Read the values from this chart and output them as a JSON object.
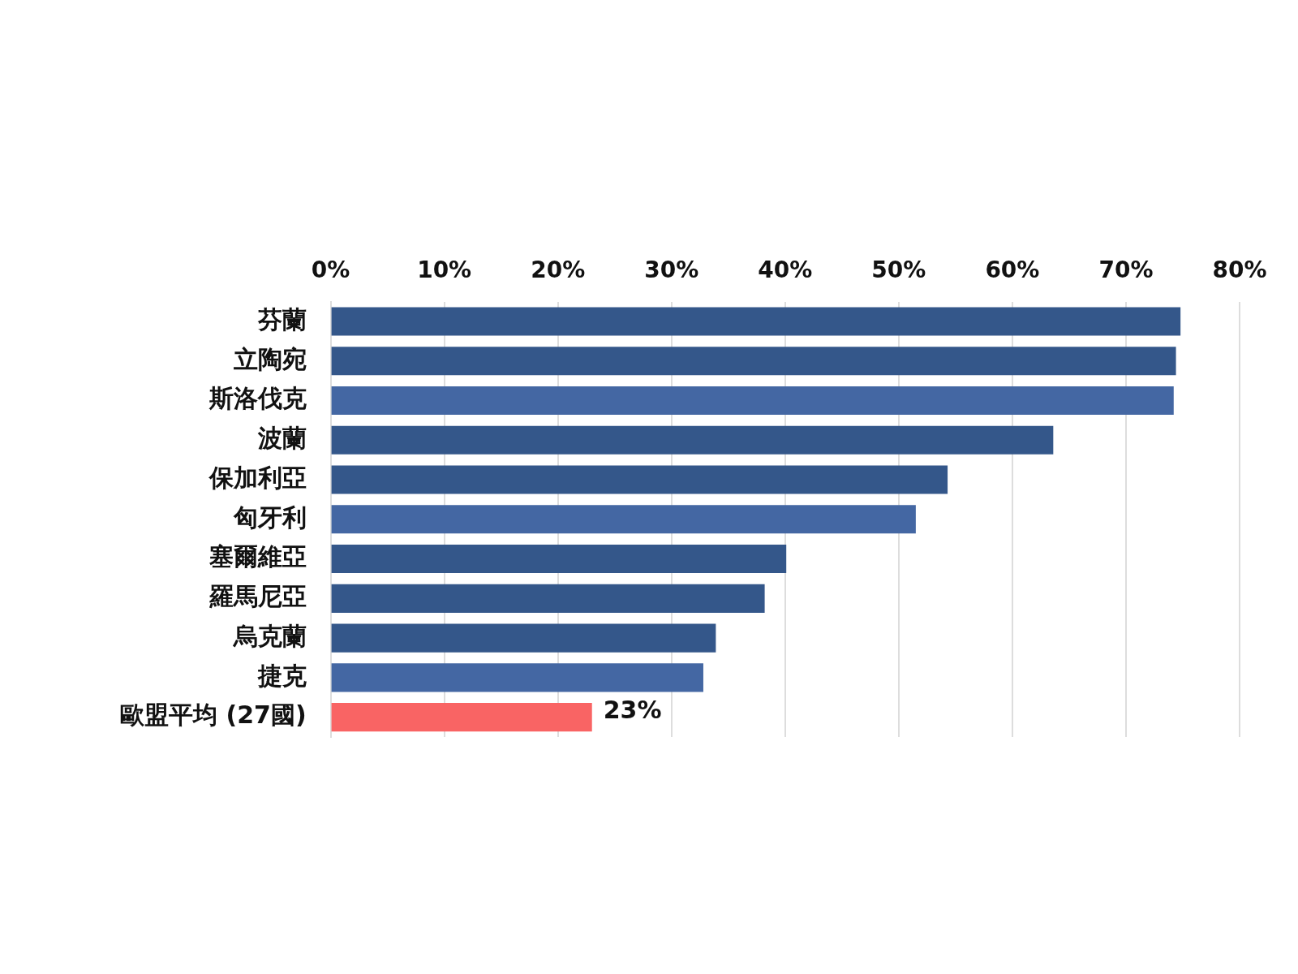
{
  "chart_data": {
    "type": "bar",
    "orientation": "horizontal",
    "categories": [
      "芬蘭",
      "立陶宛",
      "斯洛伐克",
      "波蘭",
      "保加利亞",
      "匈牙利",
      "塞爾維亞",
      "羅馬尼亞",
      "烏克蘭",
      "捷克",
      "歐盟平均 (27國)"
    ],
    "values": [
      74.8,
      74.4,
      74.2,
      63.6,
      54.3,
      51.5,
      40.1,
      38.2,
      33.9,
      32.8,
      23
    ],
    "colors": [
      "#34578a",
      "#34578a",
      "#4467a3",
      "#34578a",
      "#34578a",
      "#4467a3",
      "#34578a",
      "#34578a",
      "#34578a",
      "#4467a3",
      "#f96464"
    ],
    "value_labels": [
      null,
      null,
      null,
      null,
      null,
      null,
      null,
      null,
      null,
      null,
      "23%"
    ],
    "xlim": [
      0,
      80
    ],
    "xticks": [
      {
        "value": 0,
        "label": "0%"
      },
      {
        "value": 10,
        "label": "10%"
      },
      {
        "value": 20,
        "label": "20%"
      },
      {
        "value": 30,
        "label": "30%"
      },
      {
        "value": 40,
        "label": "40%"
      },
      {
        "value": 50,
        "label": "50%"
      },
      {
        "value": 60,
        "label": "60%"
      },
      {
        "value": 70,
        "label": "70%"
      },
      {
        "value": 80,
        "label": "80%"
      }
    ],
    "grid": "x",
    "legend": false
  }
}
